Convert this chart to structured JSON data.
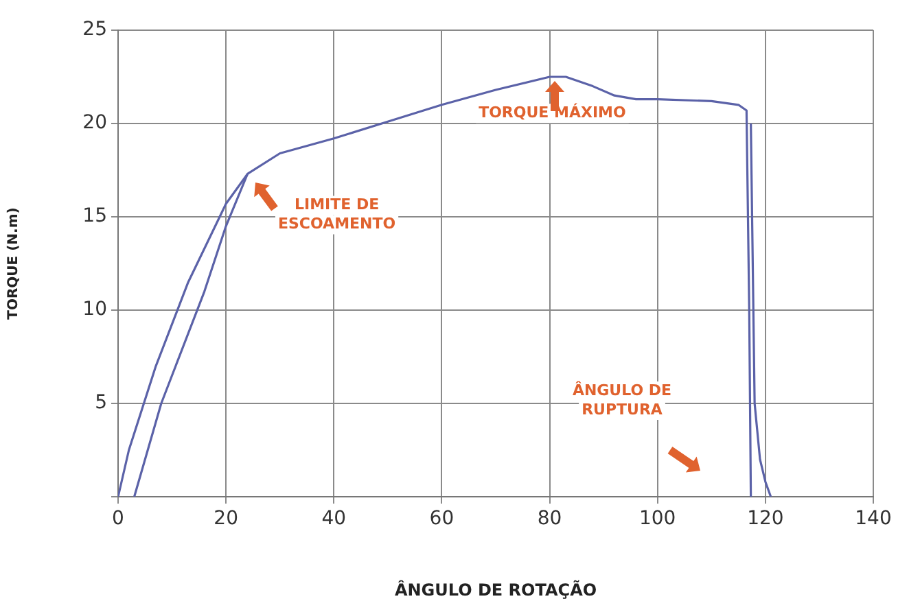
{
  "chart_data": {
    "type": "line",
    "xlabel": "ÂNGULO DE ROTAÇÃO",
    "ylabel": "TORQUE (N.m)",
    "xlim": [
      0,
      140
    ],
    "ylim": [
      0,
      25
    ],
    "xticks": [
      0,
      20,
      40,
      60,
      80,
      100,
      120,
      140
    ],
    "yticks": [
      {
        "value": 0,
        "label": null
      },
      5,
      10,
      15,
      20,
      25
    ],
    "grid": true,
    "legend": false,
    "marker": "none",
    "line_style": "solid",
    "series": [
      {
        "color": "#5b62a8",
        "x": [
          0,
          2,
          7,
          13,
          20,
          24,
          30,
          40,
          50,
          60,
          70,
          80,
          83,
          88,
          92,
          96,
          100,
          110,
          115,
          116.5,
          117,
          117.3
        ],
        "values": [
          0,
          2.5,
          7,
          11.5,
          15.7,
          17.3,
          18.4,
          19.2,
          20.1,
          21,
          21.8,
          22.5,
          22.5,
          22,
          21.5,
          21.3,
          21.3,
          21.2,
          21,
          20.7,
          10,
          0
        ]
      },
      {
        "color": "#5b62a8",
        "x": [
          3,
          8,
          16,
          20,
          24
        ],
        "values": [
          0,
          5,
          11,
          14.5,
          17.3
        ]
      },
      {
        "color": "#5b62a8",
        "x": [
          117.3,
          118,
          119,
          120,
          121
        ],
        "values": [
          20,
          5,
          2,
          0.8,
          0
        ]
      }
    ],
    "annotations": [
      {
        "text": "LIMITE DE\nESCOAMENTO",
        "x": 24,
        "y": 17.3
      },
      {
        "text": "TORQUE MÁXIMO",
        "x": 81,
        "y": 22.6
      },
      "ÂNGULO DE\nRUPTURA"
    ]
  }
}
